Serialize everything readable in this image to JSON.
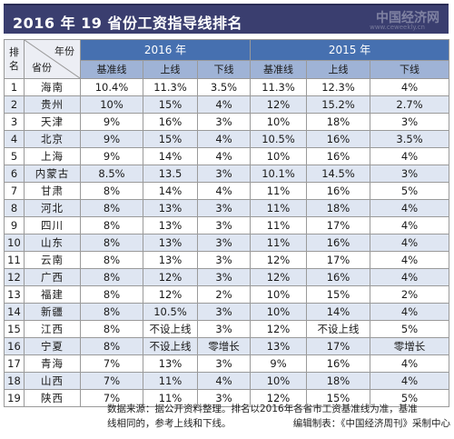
{
  "title": "2016 年 19 省份工资指导线排名",
  "watermark": "中国经济网",
  "watermark_url": "www.ceweekly.cn",
  "table": {
    "rank_header": "排名",
    "corner_year": "年份",
    "corner_province": "省份",
    "year_headers": [
      "2016 年",
      "2015 年"
    ],
    "sub_headers": [
      "基准线",
      "上线",
      "下线",
      "基准线",
      "上线",
      "下线"
    ],
    "rows": [
      {
        "rank": "1",
        "province": "海南",
        "v": [
          "10.4%",
          "11.3%",
          "3.5%",
          "11.3%",
          "12.3%",
          "4%"
        ]
      },
      {
        "rank": "2",
        "province": "贵州",
        "v": [
          "10%",
          "15%",
          "4%",
          "12%",
          "15.2%",
          "2.7%"
        ]
      },
      {
        "rank": "3",
        "province": "天津",
        "v": [
          "9%",
          "16%",
          "3%",
          "10%",
          "18%",
          "3%"
        ]
      },
      {
        "rank": "4",
        "province": "北京",
        "v": [
          "9%",
          "15%",
          "4%",
          "10.5%",
          "16%",
          "3.5%"
        ]
      },
      {
        "rank": "5",
        "province": "上海",
        "v": [
          "9%",
          "14%",
          "4%",
          "10%",
          "16%",
          "4%"
        ]
      },
      {
        "rank": "6",
        "province": "内蒙古",
        "v": [
          "8.5%",
          "13.5",
          "3%",
          "10.1%",
          "14.5%",
          "3%"
        ]
      },
      {
        "rank": "7",
        "province": "甘肃",
        "v": [
          "8%",
          "14%",
          "4%",
          "11%",
          "16%",
          "5%"
        ]
      },
      {
        "rank": "8",
        "province": "河北",
        "v": [
          "8%",
          "13%",
          "3%",
          "11%",
          "18%",
          "4%"
        ]
      },
      {
        "rank": "9",
        "province": "四川",
        "v": [
          "8%",
          "13%",
          "3%",
          "11%",
          "17%",
          "4%"
        ]
      },
      {
        "rank": "10",
        "province": "山东",
        "v": [
          "8%",
          "13%",
          "3%",
          "11%",
          "16%",
          "4%"
        ]
      },
      {
        "rank": "11",
        "province": "云南",
        "v": [
          "8%",
          "13%",
          "3%",
          "12%",
          "17%",
          "4%"
        ]
      },
      {
        "rank": "12",
        "province": "广西",
        "v": [
          "8%",
          "12%",
          "3%",
          "12%",
          "16%",
          "4%"
        ]
      },
      {
        "rank": "13",
        "province": "福建",
        "v": [
          "8%",
          "12%",
          "2%",
          "10%",
          "15%",
          "2%"
        ]
      },
      {
        "rank": "14",
        "province": "新疆",
        "v": [
          "8%",
          "10.5%",
          "3%",
          "10%",
          "14%",
          "4%"
        ]
      },
      {
        "rank": "15",
        "province": "江西",
        "v": [
          "8%",
          "不设上线",
          "3%",
          "12%",
          "不设上线",
          "5%"
        ]
      },
      {
        "rank": "16",
        "province": "宁夏",
        "v": [
          "8%",
          "不设上线",
          "零增长",
          "13%",
          "17%",
          "零增长"
        ]
      },
      {
        "rank": "17",
        "province": "青海",
        "v": [
          "7%",
          "13%",
          "3%",
          "9%",
          "16%",
          "4%"
        ]
      },
      {
        "rank": "18",
        "province": "山西",
        "v": [
          "7%",
          "11%",
          "4%",
          "10%",
          "18%",
          "4%"
        ]
      },
      {
        "rank": "19",
        "province": "陕西",
        "v": [
          "7%",
          "11%",
          "3%",
          "12%",
          "15%",
          "5%"
        ]
      }
    ]
  },
  "footnote": {
    "line1": "数据来源：据公开资料整理。排名以2016年各省市工资基准线为准，基准",
    "line2_left": "线相同的，参考上线和下线。",
    "line2_right": "编辑制表：《中国经济周刊》采制中心"
  },
  "colors": {
    "title_bg": "#3a3e6f",
    "year_header_bg": "#4670b0",
    "sub_header_bg": "#9fb3d6",
    "stripe_bg": "#dfe6f2"
  }
}
